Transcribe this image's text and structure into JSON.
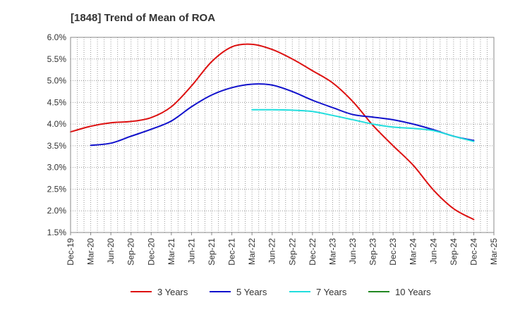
{
  "chart_data": {
    "type": "line",
    "title": "[1848]  Trend of Mean of ROA",
    "xlabel": "",
    "ylabel": "",
    "ylim": [
      1.5,
      6.0
    ],
    "y_ticks": [
      "1.5%",
      "2.0%",
      "2.5%",
      "3.0%",
      "3.5%",
      "4.0%",
      "4.5%",
      "5.0%",
      "5.5%",
      "6.0%"
    ],
    "grid": true,
    "legend_position": "bottom",
    "categories": [
      "Dec-19",
      "Mar-20",
      "Jun-20",
      "Sep-20",
      "Dec-20",
      "Mar-21",
      "Jun-21",
      "Sep-21",
      "Dec-21",
      "Mar-22",
      "Jun-22",
      "Sep-22",
      "Dec-22",
      "Mar-23",
      "Jun-23",
      "Sep-23",
      "Dec-23",
      "Mar-24",
      "Jun-24",
      "Sep-24",
      "Dec-24",
      "Mar-25"
    ],
    "series": [
      {
        "name": "3 Years",
        "color": "#dd1111",
        "values": [
          3.82,
          3.95,
          4.03,
          4.06,
          4.15,
          4.4,
          4.88,
          5.44,
          5.78,
          5.84,
          5.72,
          5.5,
          5.23,
          4.95,
          4.52,
          3.97,
          3.5,
          3.05,
          2.48,
          2.05,
          1.8,
          null
        ]
      },
      {
        "name": "5 Years",
        "color": "#1111cc",
        "values": [
          null,
          3.51,
          3.56,
          3.72,
          3.88,
          4.07,
          4.4,
          4.67,
          4.84,
          4.92,
          4.9,
          4.75,
          4.55,
          4.38,
          4.22,
          4.16,
          4.1,
          4.0,
          3.87,
          3.72,
          3.62,
          null
        ]
      },
      {
        "name": "7 Years",
        "color": "#22dddd",
        "values": [
          null,
          null,
          null,
          null,
          null,
          null,
          null,
          null,
          null,
          4.33,
          4.33,
          4.32,
          4.29,
          4.2,
          4.1,
          4.0,
          3.93,
          3.9,
          3.85,
          3.72,
          3.6,
          null
        ]
      },
      {
        "name": "10 Years",
        "color": "#228822",
        "values": [
          null,
          null,
          null,
          null,
          null,
          null,
          null,
          null,
          null,
          null,
          null,
          null,
          null,
          null,
          null,
          null,
          null,
          null,
          null,
          null,
          null,
          null
        ]
      }
    ]
  }
}
